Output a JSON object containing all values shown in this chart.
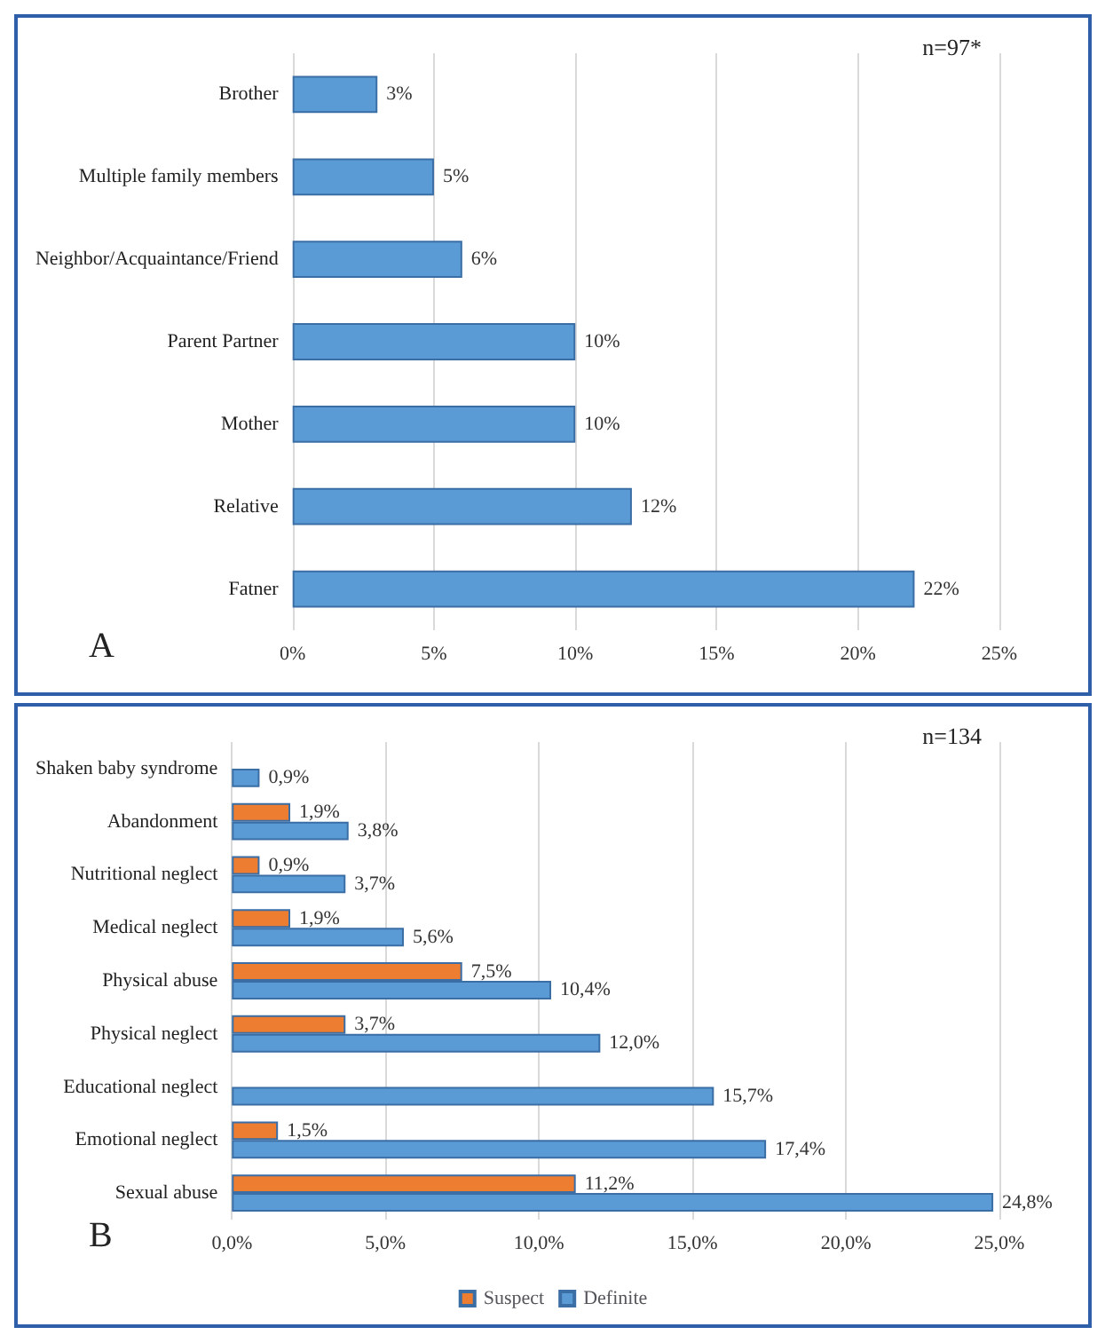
{
  "chart_data": [
    {
      "type": "bar",
      "orientation": "horizontal",
      "categories": [
        "Brother",
        "Multiple family members",
        "Neighbor/Acquaintance/Friend",
        "Parent Partner",
        "Mother",
        "Relative",
        "Fatner"
      ],
      "series": [
        {
          "color": "#5b9bd5",
          "values": [
            3,
            5,
            6,
            10,
            10,
            12,
            22
          ],
          "value_labels": [
            "3%",
            "5%",
            "6%",
            "10%",
            "10%",
            "12%",
            "22%"
          ]
        }
      ],
      "xlim": [
        0,
        25
      ],
      "xticks": [
        {
          "value": 0,
          "label": "0%"
        },
        {
          "value": 5,
          "label": "5%"
        },
        {
          "value": 10,
          "label": "10%"
        },
        {
          "value": 15,
          "label": "15%"
        },
        {
          "value": 20,
          "label": "20%"
        },
        {
          "value": 25,
          "label": "25%"
        }
      ],
      "grid": "x",
      "annotations": [
        "n=97*",
        "A"
      ]
    },
    {
      "type": "bar",
      "orientation": "horizontal",
      "categories": [
        "Shaken baby syndrome",
        "Abandonment",
        "Nutritional neglect",
        "Medical neglect",
        "Physical abuse",
        "Physical neglect",
        "Educational neglect",
        "Emotional neglect",
        "Sexual abuse"
      ],
      "series": [
        {
          "name": "Suspect",
          "color": "#ed7d31",
          "values": [
            null,
            1.9,
            0.9,
            1.9,
            7.5,
            3.7,
            null,
            1.5,
            11.2
          ],
          "value_labels": [
            null,
            "1,9%",
            "0,9%",
            "1,9%",
            "7,5%",
            "3,7%",
            null,
            "1,5%",
            "11,2%"
          ]
        },
        {
          "name": "Definite",
          "color": "#5b9bd5",
          "values": [
            0.9,
            3.8,
            3.7,
            5.6,
            10.4,
            12.0,
            15.7,
            17.4,
            24.8
          ],
          "value_labels": [
            "0,9%",
            "3,8%",
            "3,7%",
            "5,6%",
            "10,4%",
            "12,0%",
            "15,7%",
            "17,4%",
            "24,8%"
          ]
        }
      ],
      "xlim": [
        0,
        25
      ],
      "xticks": [
        {
          "value": 0,
          "label": "0,0%"
        },
        {
          "value": 5,
          "label": "5,0%"
        },
        {
          "value": 10,
          "label": "10,0%"
        },
        {
          "value": 15,
          "label": "15,0%"
        },
        {
          "value": 20,
          "label": "20,0%"
        },
        {
          "value": 25,
          "label": "25,0%"
        }
      ],
      "grid": "x",
      "legend": "bottom",
      "annotations": [
        "n=134",
        "B"
      ]
    }
  ]
}
